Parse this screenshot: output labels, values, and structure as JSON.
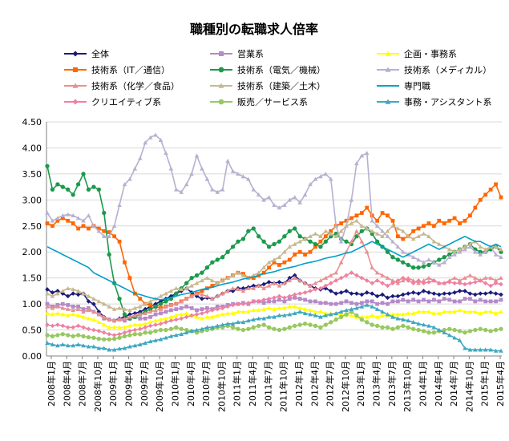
{
  "chart_data": {
    "type": "line",
    "title": "職種別の転職求人倍率",
    "xlabel": "",
    "ylabel": "",
    "ylim": [
      0,
      4.5
    ],
    "yticks": [
      "0.00",
      "0.50",
      "1.00",
      "1.50",
      "2.00",
      "2.50",
      "3.00",
      "3.50",
      "4.00",
      "4.50"
    ],
    "grid": true,
    "legend_position": "top",
    "x_labels": [
      "2008年1月",
      "2008年4月",
      "2008年7月",
      "2008年10月",
      "2009年1月",
      "2009年4月",
      "2009年7月",
      "2009年10月",
      "2010年1月",
      "2010年4月",
      "2010年7月",
      "2010年10月",
      "2011年1月",
      "2011年4月",
      "2011年7月",
      "2011年10月",
      "2012年1月",
      "2012年4月",
      "2012年7月",
      "2012年10月",
      "2013年1月",
      "2013年4月",
      "2013年7月",
      "2013年10月",
      "2014年1月",
      "2014年4月",
      "2014年7月",
      "2014年10月",
      "2015年1月",
      "2015年4月"
    ],
    "series": [
      {
        "name": "全体",
        "color": "#1a1a7a",
        "marker": "diamond",
        "values": [
          1.28,
          1.22,
          1.25,
          1.2,
          1.15,
          1.2,
          1.18,
          1.2,
          1.05,
          1.0,
          0.85,
          0.75,
          0.7,
          0.68,
          0.72,
          0.75,
          0.8,
          0.82,
          0.85,
          0.9,
          0.95,
          1.0,
          1.05,
          1.1,
          1.15,
          1.2,
          1.25,
          1.3,
          1.22,
          1.15,
          1.1,
          1.12,
          1.1,
          1.15,
          1.2,
          1.25,
          1.25,
          1.3,
          1.3,
          1.32,
          1.35,
          1.35,
          1.38,
          1.42,
          1.4,
          1.42,
          1.4,
          1.5,
          1.55,
          1.45,
          1.4,
          1.35,
          1.3,
          1.28,
          1.3,
          1.25,
          1.2,
          1.22,
          1.25,
          1.2,
          1.2,
          1.18,
          1.22,
          1.2,
          1.15,
          1.18,
          1.12,
          1.15,
          1.15,
          1.18,
          1.2,
          1.22,
          1.2,
          1.25,
          1.22,
          1.2,
          1.18,
          1.2,
          1.2,
          1.22,
          1.25,
          1.25,
          1.2,
          1.18,
          1.2,
          1.2,
          1.22,
          1.2,
          1.18
        ]
      },
      {
        "name": "営業系",
        "color": "#b48ac8",
        "marker": "square",
        "values": [
          1.0,
          0.95,
          0.98,
          1.0,
          0.98,
          0.95,
          0.95,
          0.9,
          0.92,
          0.85,
          0.8,
          0.72,
          0.7,
          0.68,
          0.7,
          0.68,
          0.72,
          0.75,
          0.72,
          0.72,
          0.75,
          0.8,
          0.82,
          0.85,
          0.88,
          0.9,
          0.92,
          0.95,
          0.92,
          0.88,
          0.9,
          0.92,
          0.9,
          0.95,
          0.95,
          0.98,
          1.0,
          1.0,
          1.02,
          1.0,
          1.05,
          1.05,
          1.02,
          1.05,
          1.05,
          1.08,
          1.05,
          1.1,
          1.12,
          1.1,
          1.08,
          1.05,
          1.05,
          1.02,
          1.02,
          1.0,
          1.0,
          1.02,
          1.05,
          1.02,
          1.0,
          1.02,
          1.05,
          1.05,
          1.0,
          1.02,
          1.0,
          1.05,
          1.05,
          1.08,
          1.05,
          1.08,
          1.05,
          1.08,
          1.05,
          1.08,
          1.05,
          1.1,
          1.08,
          1.05,
          1.05,
          1.1,
          1.1,
          1.05,
          1.08,
          1.05,
          1.05,
          1.05,
          1.08
        ]
      },
      {
        "name": "企画・事務系",
        "color": "#ffff00",
        "marker": "triangle",
        "values": [
          0.82,
          0.8,
          0.82,
          0.8,
          0.78,
          0.8,
          0.78,
          0.75,
          0.72,
          0.7,
          0.65,
          0.6,
          0.55,
          0.55,
          0.55,
          0.55,
          0.58,
          0.6,
          0.6,
          0.62,
          0.65,
          0.68,
          0.7,
          0.72,
          0.75,
          0.78,
          0.8,
          0.82,
          0.78,
          0.75,
          0.72,
          0.75,
          0.75,
          0.78,
          0.8,
          0.82,
          0.82,
          0.85,
          0.85,
          0.85,
          0.88,
          0.88,
          0.9,
          0.92,
          0.9,
          0.92,
          0.92,
          0.95,
          0.95,
          0.92,
          0.9,
          0.88,
          0.85,
          0.85,
          0.82,
          0.82,
          0.8,
          0.8,
          0.78,
          0.78,
          0.75,
          0.75,
          0.75,
          0.78,
          0.75,
          0.78,
          0.78,
          0.8,
          0.8,
          0.8,
          0.82,
          0.82,
          0.85,
          0.85,
          0.85,
          0.82,
          0.82,
          0.85,
          0.85,
          0.85,
          0.88,
          0.85,
          0.85,
          0.85,
          0.82,
          0.85,
          0.85,
          0.82,
          0.85
        ]
      },
      {
        "name": "技術系（IT／通信）",
        "color": "#ff6600",
        "marker": "square",
        "values": [
          2.55,
          2.5,
          2.6,
          2.65,
          2.6,
          2.55,
          2.45,
          2.5,
          2.45,
          2.5,
          2.45,
          2.4,
          2.38,
          2.3,
          2.2,
          1.8,
          1.5,
          1.2,
          1.1,
          1.0,
          0.98,
          0.95,
          0.92,
          0.95,
          0.98,
          1.0,
          1.05,
          1.1,
          1.15,
          1.2,
          1.25,
          1.3,
          1.35,
          1.4,
          1.45,
          1.5,
          1.55,
          1.6,
          1.58,
          1.5,
          1.5,
          1.55,
          1.6,
          1.7,
          1.8,
          1.75,
          1.8,
          1.85,
          1.95,
          2.0,
          1.95,
          2.0,
          2.1,
          2.2,
          2.3,
          2.4,
          2.5,
          2.55,
          2.6,
          2.65,
          2.7,
          2.75,
          2.85,
          2.7,
          2.6,
          2.75,
          2.7,
          2.6,
          2.3,
          2.25,
          2.3,
          2.4,
          2.45,
          2.5,
          2.55,
          2.5,
          2.6,
          2.55,
          2.6,
          2.65,
          2.55,
          2.6,
          2.7,
          2.85,
          3.0,
          3.1,
          3.2,
          3.3,
          3.05
        ]
      },
      {
        "name": "技術系（電気／機械）",
        "color": "#1a9a4a",
        "marker": "circle",
        "values": [
          3.65,
          3.2,
          3.3,
          3.25,
          3.2,
          3.1,
          3.3,
          3.5,
          3.2,
          3.25,
          3.2,
          2.75,
          1.95,
          1.4,
          1.1,
          0.8,
          0.72,
          0.75,
          0.8,
          0.85,
          0.9,
          0.95,
          1.0,
          1.05,
          1.1,
          1.2,
          1.3,
          1.4,
          1.5,
          1.55,
          1.6,
          1.7,
          1.8,
          1.85,
          1.9,
          2.0,
          2.1,
          2.2,
          2.25,
          2.4,
          2.45,
          2.3,
          2.2,
          2.1,
          2.15,
          2.2,
          2.3,
          2.4,
          2.45,
          2.3,
          2.25,
          2.2,
          2.15,
          2.1,
          2.2,
          2.3,
          2.35,
          2.25,
          2.2,
          2.15,
          2.3,
          2.4,
          2.45,
          2.35,
          2.2,
          2.1,
          2.0,
          1.9,
          1.85,
          1.8,
          1.75,
          1.7,
          1.7,
          1.72,
          1.75,
          1.8,
          1.85,
          1.9,
          1.95,
          2.0,
          2.05,
          2.1,
          2.15,
          2.05,
          2.0,
          2.0,
          2.05,
          2.1,
          2.0
        ]
      },
      {
        "name": "技術系（メディカル）",
        "color": "#b8b0d0",
        "marker": "triangle",
        "values": [
          2.75,
          2.6,
          2.65,
          2.7,
          2.72,
          2.7,
          2.65,
          2.6,
          2.7,
          2.5,
          2.4,
          2.3,
          2.3,
          2.5,
          2.9,
          3.3,
          3.4,
          3.6,
          3.8,
          4.1,
          4.2,
          4.25,
          4.15,
          3.9,
          3.6,
          3.2,
          3.15,
          3.3,
          3.5,
          3.85,
          3.6,
          3.4,
          3.2,
          3.15,
          3.2,
          3.75,
          3.55,
          3.5,
          3.45,
          3.4,
          3.2,
          3.1,
          3.0,
          3.05,
          2.9,
          2.85,
          2.9,
          3.0,
          3.05,
          2.95,
          3.1,
          3.3,
          3.4,
          3.45,
          3.5,
          3.4,
          2.5,
          2.2,
          2.5,
          3.0,
          3.7,
          3.85,
          3.9,
          2.6,
          2.5,
          2.4,
          2.3,
          2.2,
          2.1,
          2.0,
          1.95,
          1.9,
          1.85,
          1.8,
          1.85,
          1.8,
          1.75,
          1.8,
          1.9,
          1.95,
          2.0,
          2.05,
          2.1,
          2.0,
          1.95,
          2.0,
          2.1,
          1.95,
          1.9
        ]
      },
      {
        "name": "技術系（化学／食品）",
        "color": "#e89090",
        "marker": "triangle",
        "values": [
          0.95,
          0.92,
          0.95,
          0.92,
          0.9,
          0.88,
          0.9,
          0.85,
          0.88,
          0.85,
          0.8,
          0.75,
          0.7,
          0.68,
          0.7,
          0.72,
          0.75,
          0.78,
          0.8,
          0.82,
          0.85,
          0.88,
          0.9,
          0.95,
          0.98,
          1.0,
          1.05,
          1.1,
          1.15,
          1.2,
          1.18,
          1.15,
          1.1,
          1.15,
          1.2,
          1.25,
          1.3,
          1.28,
          1.25,
          1.3,
          1.3,
          1.35,
          1.3,
          1.35,
          1.4,
          1.35,
          1.4,
          1.45,
          1.5,
          1.45,
          1.4,
          1.35,
          1.4,
          1.45,
          1.5,
          1.55,
          1.6,
          1.8,
          2.0,
          2.2,
          2.4,
          2.2,
          2.0,
          1.7,
          1.6,
          1.55,
          1.5,
          1.45,
          1.4,
          1.45,
          1.5,
          1.45,
          1.4,
          1.45,
          1.5,
          1.45,
          1.4,
          1.4,
          1.45,
          1.5,
          1.45,
          1.5,
          1.55,
          1.5,
          1.45,
          1.5,
          1.5,
          1.45,
          1.5
        ]
      },
      {
        "name": "技術系（建築／土木）",
        "color": "#c8b890",
        "marker": "triangle",
        "values": [
          1.2,
          1.15,
          1.2,
          1.25,
          1.3,
          1.28,
          1.25,
          1.2,
          1.15,
          1.1,
          1.05,
          1.0,
          0.95,
          0.9,
          0.92,
          0.9,
          0.88,
          0.92,
          0.95,
          1.0,
          1.05,
          1.1,
          1.15,
          1.2,
          1.25,
          1.3,
          1.28,
          1.3,
          1.35,
          1.4,
          1.45,
          1.5,
          1.45,
          1.4,
          1.45,
          1.5,
          1.55,
          1.6,
          1.55,
          1.5,
          1.55,
          1.6,
          1.7,
          1.8,
          1.85,
          1.9,
          2.0,
          2.1,
          2.15,
          2.2,
          2.25,
          2.3,
          2.35,
          2.3,
          2.4,
          2.35,
          2.3,
          2.4,
          2.5,
          2.55,
          2.6,
          2.5,
          2.45,
          2.4,
          2.35,
          2.3,
          2.4,
          2.5,
          2.45,
          2.4,
          2.3,
          2.25,
          2.3,
          2.35,
          2.3,
          2.2,
          2.15,
          2.1,
          2.05,
          2.0,
          2.05,
          2.1,
          2.15,
          2.2,
          2.1,
          2.05,
          2.1,
          2.1,
          2.05
        ]
      },
      {
        "name": "専門職",
        "color": "#00a0c8",
        "marker": "none",
        "values": [
          2.1,
          2.05,
          2.0,
          1.95,
          1.9,
          1.85,
          1.8,
          1.75,
          1.7,
          1.6,
          1.55,
          1.5,
          1.45,
          1.4,
          1.35,
          1.3,
          1.25,
          1.2,
          1.18,
          1.15,
          1.12,
          1.1,
          1.08,
          1.1,
          1.12,
          1.15,
          1.18,
          1.2,
          1.22,
          1.25,
          1.28,
          1.3,
          1.32,
          1.35,
          1.38,
          1.4,
          1.42,
          1.45,
          1.48,
          1.5,
          1.52,
          1.55,
          1.58,
          1.6,
          1.62,
          1.65,
          1.68,
          1.7,
          1.72,
          1.75,
          1.78,
          1.8,
          1.82,
          1.85,
          1.88,
          1.9,
          1.92,
          1.95,
          1.98,
          2.0,
          2.05,
          2.1,
          2.15,
          2.2,
          2.15,
          2.1,
          2.05,
          2.0,
          1.95,
          1.9,
          1.95,
          2.0,
          2.05,
          2.1,
          2.15,
          2.1,
          2.05,
          2.1,
          2.15,
          2.2,
          2.25,
          2.3,
          2.25,
          2.2,
          2.2,
          2.15,
          2.1,
          2.15,
          2.1
        ]
      },
      {
        "name": "クリエイティブ系",
        "color": "#f080a0",
        "marker": "diamond",
        "values": [
          0.6,
          0.58,
          0.6,
          0.58,
          0.55,
          0.55,
          0.58,
          0.55,
          0.52,
          0.5,
          0.48,
          0.45,
          0.42,
          0.4,
          0.42,
          0.45,
          0.48,
          0.5,
          0.52,
          0.55,
          0.58,
          0.6,
          0.62,
          0.65,
          0.68,
          0.7,
          0.72,
          0.75,
          0.78,
          0.8,
          0.82,
          0.85,
          0.88,
          0.9,
          0.92,
          0.95,
          0.98,
          1.0,
          1.0,
          1.02,
          1.05,
          1.05,
          1.08,
          1.1,
          1.12,
          1.15,
          1.12,
          1.15,
          1.18,
          1.2,
          1.22,
          1.25,
          1.28,
          1.3,
          1.35,
          1.4,
          1.45,
          1.5,
          1.55,
          1.6,
          1.55,
          1.5,
          1.45,
          1.4,
          1.45,
          1.4,
          1.35,
          1.4,
          1.45,
          1.5,
          1.45,
          1.4,
          1.45,
          1.4,
          1.42,
          1.45,
          1.4,
          1.4,
          1.42,
          1.4,
          1.4,
          1.38,
          1.4,
          1.42,
          1.45,
          1.4,
          1.35,
          1.4,
          1.38
        ]
      },
      {
        "name": "販売／サービス系",
        "color": "#98c860",
        "marker": "circle",
        "values": [
          0.4,
          0.38,
          0.4,
          0.42,
          0.4,
          0.38,
          0.4,
          0.38,
          0.36,
          0.35,
          0.33,
          0.32,
          0.32,
          0.33,
          0.35,
          0.38,
          0.4,
          0.42,
          0.42,
          0.45,
          0.45,
          0.48,
          0.5,
          0.5,
          0.52,
          0.55,
          0.52,
          0.5,
          0.48,
          0.45,
          0.48,
          0.5,
          0.52,
          0.55,
          0.55,
          0.58,
          0.55,
          0.52,
          0.5,
          0.52,
          0.55,
          0.58,
          0.6,
          0.55,
          0.52,
          0.5,
          0.52,
          0.55,
          0.58,
          0.6,
          0.62,
          0.6,
          0.58,
          0.55,
          0.6,
          0.65,
          0.7,
          0.75,
          0.8,
          0.85,
          0.78,
          0.7,
          0.65,
          0.6,
          0.58,
          0.55,
          0.55,
          0.52,
          0.55,
          0.58,
          0.55,
          0.52,
          0.5,
          0.48,
          0.45,
          0.45,
          0.48,
          0.5,
          0.52,
          0.5,
          0.48,
          0.45,
          0.48,
          0.5,
          0.52,
          0.5,
          0.48,
          0.5,
          0.52
        ]
      },
      {
        "name": "事務・アシスタント系",
        "color": "#40a8c0",
        "marker": "triangle",
        "values": [
          0.25,
          0.22,
          0.2,
          0.22,
          0.2,
          0.2,
          0.22,
          0.2,
          0.18,
          0.18,
          0.15,
          0.15,
          0.12,
          0.12,
          0.14,
          0.15,
          0.18,
          0.2,
          0.22,
          0.25,
          0.28,
          0.3,
          0.32,
          0.35,
          0.38,
          0.4,
          0.42,
          0.45,
          0.48,
          0.5,
          0.52,
          0.55,
          0.55,
          0.58,
          0.6,
          0.62,
          0.62,
          0.65,
          0.65,
          0.68,
          0.7,
          0.72,
          0.72,
          0.75,
          0.75,
          0.78,
          0.78,
          0.8,
          0.82,
          0.85,
          0.82,
          0.8,
          0.78,
          0.75,
          0.78,
          0.8,
          0.82,
          0.85,
          0.88,
          0.9,
          0.92,
          0.95,
          0.98,
          0.95,
          0.9,
          0.85,
          0.8,
          0.75,
          0.72,
          0.7,
          0.68,
          0.65,
          0.62,
          0.6,
          0.58,
          0.55,
          0.5,
          0.45,
          0.4,
          0.35,
          0.3,
          0.15,
          0.12,
          0.12,
          0.12,
          0.12,
          0.12,
          0.1,
          0.1
        ]
      }
    ]
  }
}
